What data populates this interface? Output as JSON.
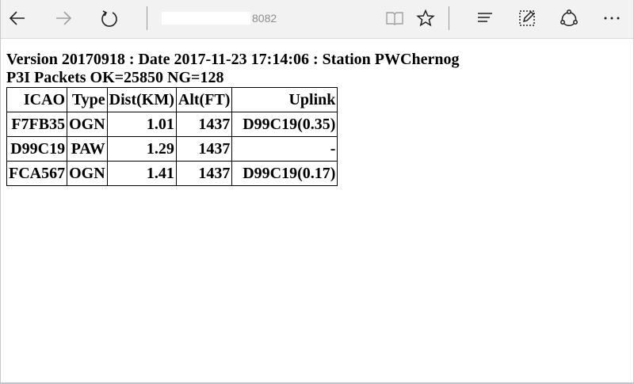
{
  "browser": {
    "address_text": "8082"
  },
  "page": {
    "version_line": "Version 20170918 : Date 2017-11-23 17:14:06 : Station PWChernog",
    "packets_line": "P3I Packets OK=25850 NG=128"
  },
  "table": {
    "headers": [
      "ICAO",
      "Type",
      "Dist(KM)",
      "Alt(FT)",
      "Uplink"
    ],
    "rows": [
      {
        "icao": "F7FB35",
        "type": "OGN",
        "dist": "1.01",
        "alt": "1437",
        "uplink": "D99C19(0.35)"
      },
      {
        "icao": "D99C19",
        "type": "PAW",
        "dist": "1.29",
        "alt": "1437",
        "uplink": "-"
      },
      {
        "icao": "FCA567",
        "type": "OGN",
        "dist": "1.41",
        "alt": "1437",
        "uplink": "D99C19(0.17)"
      }
    ]
  },
  "colors": {
    "toolbar_bg": "#f2f2f2",
    "icon_active": "#1f1f1f",
    "icon_disabled": "#a0a0a0"
  },
  "icons": [
    "back-icon",
    "forward-icon",
    "refresh-icon",
    "reading-view-icon",
    "favorite-star-icon",
    "hub-icon",
    "web-note-icon",
    "share-icon",
    "more-icon"
  ]
}
